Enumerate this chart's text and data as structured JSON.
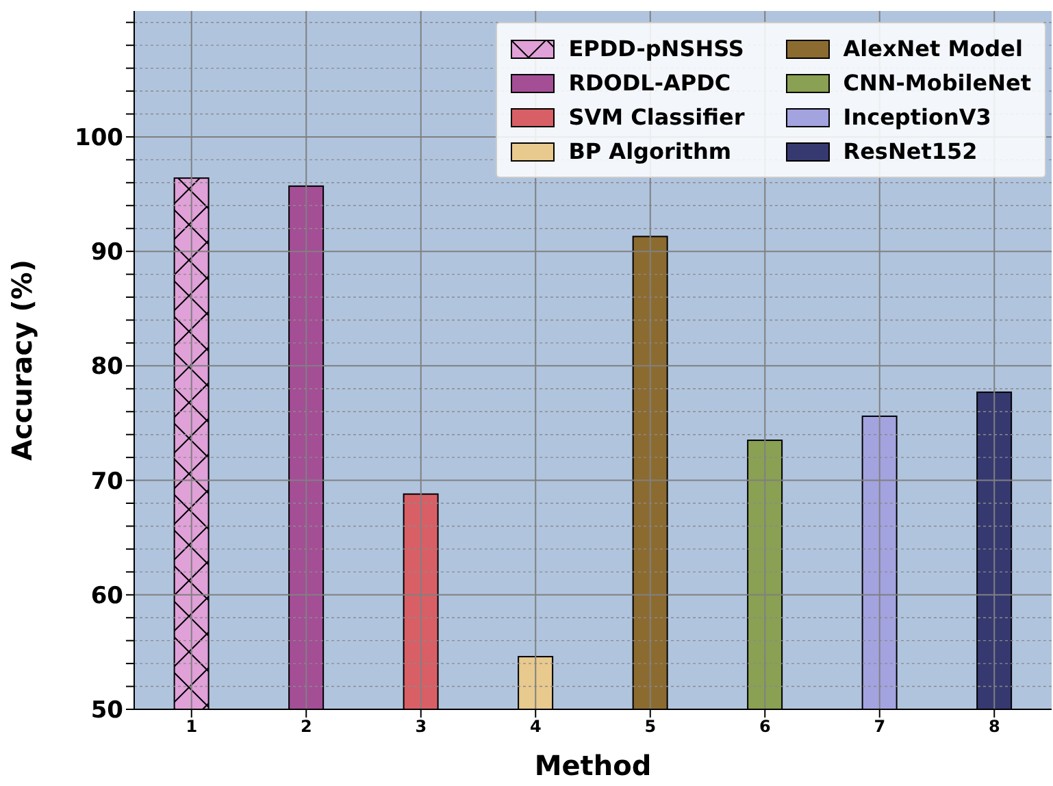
{
  "chart_data": {
    "type": "bar",
    "xlabel": "Method",
    "ylabel": "Accuracy (%)",
    "categories": [
      "1",
      "2",
      "3",
      "4",
      "5",
      "6",
      "7",
      "8"
    ],
    "series": [
      {
        "name": "EPDD-pNSHSS",
        "color": "#e0a0d8",
        "values": [
          96.4,
          null,
          null,
          null,
          null,
          null,
          null,
          null
        ]
      },
      {
        "name": "RDODL-APDC",
        "color": "#a44e96",
        "values": [
          null,
          95.7,
          null,
          null,
          null,
          null,
          null,
          null
        ]
      },
      {
        "name": "SVM Classifier",
        "color": "#d95f66",
        "values": [
          null,
          null,
          68.8,
          null,
          null,
          null,
          null,
          null
        ]
      },
      {
        "name": "BP Algorithm",
        "color": "#e8c98e",
        "values": [
          null,
          null,
          null,
          54.6,
          null,
          null,
          null,
          null
        ]
      },
      {
        "name": "AlexNet Model",
        "color": "#8c6b30",
        "values": [
          null,
          null,
          null,
          null,
          91.3,
          null,
          null,
          null
        ]
      },
      {
        "name": "CNN-MobileNet",
        "color": "#8aa052",
        "values": [
          null,
          null,
          null,
          null,
          null,
          73.5,
          null,
          null
        ]
      },
      {
        "name": "InceptionV3",
        "color": "#a3a3e0",
        "values": [
          null,
          null,
          null,
          null,
          null,
          null,
          75.6,
          null
        ]
      },
      {
        "name": "ResNet152",
        "color": "#363970",
        "values": [
          null,
          null,
          null,
          null,
          null,
          null,
          null,
          77.7
        ]
      }
    ],
    "ylim": [
      50,
      111
    ],
    "yticks": [
      50,
      {
        "value": 52,
        "label": null
      },
      {
        "value": 54,
        "label": null
      },
      {
        "value": 56,
        "label": null
      },
      {
        "value": 58,
        "label": null
      },
      60,
      {
        "value": 62,
        "label": null
      },
      {
        "value": 64,
        "label": null
      },
      {
        "value": 66,
        "label": null
      },
      {
        "value": 68,
        "label": null
      },
      70,
      {
        "value": 72,
        "label": null
      },
      {
        "value": 74,
        "label": null
      },
      {
        "value": 76,
        "label": null
      },
      {
        "value": 78,
        "label": null
      },
      80,
      {
        "value": 82,
        "label": null
      },
      {
        "value": 84,
        "label": null
      },
      {
        "value": 86,
        "label": null
      },
      {
        "value": 88,
        "label": null
      },
      90,
      {
        "value": 92,
        "label": null
      },
      {
        "value": 94,
        "label": null
      },
      {
        "value": 96,
        "label": null
      },
      {
        "value": 98,
        "label": null
      },
      100,
      {
        "value": 102,
        "label": null
      },
      {
        "value": 104,
        "label": null
      },
      {
        "value": 106,
        "label": null
      },
      {
        "value": 108,
        "label": null
      },
      {
        "value": 110,
        "label": null
      }
    ],
    "grid": true,
    "legend": "top right"
  }
}
